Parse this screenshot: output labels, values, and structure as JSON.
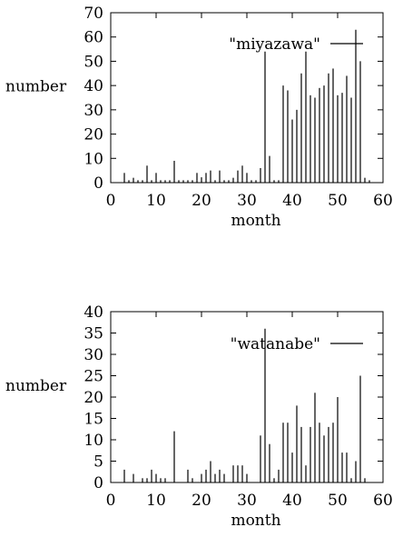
{
  "chart_data": [
    {
      "type": "bar",
      "xlabel": "month",
      "ylabel": "number",
      "xlim": [
        0,
        60
      ],
      "ylim": [
        0,
        70
      ],
      "xticks": [
        "0",
        "10",
        "20",
        "30",
        "40",
        "50",
        "60"
      ],
      "yticks": [
        "0",
        "10",
        "20",
        "30",
        "40",
        "50",
        "60",
        "70"
      ],
      "grid": false,
      "legend_placement": "top-right",
      "series": [
        {
          "name": "\"miyazawa\"",
          "x": [
            3,
            4,
            5,
            6,
            7,
            8,
            9,
            10,
            11,
            12,
            13,
            14,
            15,
            16,
            17,
            18,
            19,
            20,
            21,
            22,
            23,
            24,
            25,
            26,
            27,
            28,
            29,
            30,
            31,
            32,
            33,
            34,
            35,
            36,
            37,
            38,
            39,
            40,
            41,
            42,
            43,
            44,
            45,
            46,
            47,
            48,
            49,
            50,
            51,
            52,
            53,
            54,
            55,
            56,
            57
          ],
          "values": [
            4,
            1,
            2,
            1,
            1,
            7,
            1,
            4,
            1,
            1,
            1,
            9,
            1,
            1,
            1,
            1,
            4,
            2,
            4,
            5,
            1,
            5,
            1,
            1,
            2,
            5,
            7,
            4,
            1,
            1,
            6,
            54,
            11,
            1,
            1,
            40,
            38,
            26,
            30,
            45,
            54,
            36,
            35,
            39,
            40,
            45,
            47,
            36,
            37,
            44,
            35,
            63,
            50,
            2,
            1
          ]
        }
      ]
    },
    {
      "type": "bar",
      "xlabel": "month",
      "ylabel": "number",
      "xlim": [
        0,
        60
      ],
      "ylim": [
        0,
        40
      ],
      "xticks": [
        "0",
        "10",
        "20",
        "30",
        "40",
        "50",
        "60"
      ],
      "yticks": [
        "0",
        "5",
        "10",
        "15",
        "20",
        "25",
        "30",
        "35",
        "40"
      ],
      "grid": false,
      "legend_placement": "top-right",
      "series": [
        {
          "name": "\"watanabe\"",
          "x": [
            3,
            5,
            7,
            8,
            9,
            10,
            11,
            12,
            14,
            17,
            18,
            20,
            21,
            22,
            23,
            24,
            25,
            27,
            28,
            29,
            30,
            33,
            34,
            35,
            36,
            37,
            38,
            39,
            40,
            41,
            42,
            43,
            44,
            45,
            46,
            47,
            48,
            49,
            50,
            51,
            52,
            53,
            54,
            55,
            56
          ],
          "values": [
            3,
            2,
            1,
            1,
            3,
            2,
            1,
            1,
            12,
            3,
            1,
            2,
            3,
            5,
            2,
            3,
            2,
            4,
            4,
            4,
            2,
            11,
            36,
            9,
            1,
            3,
            14,
            14,
            7,
            18,
            13,
            4,
            13,
            21,
            14,
            11,
            13,
            14,
            20,
            7,
            7,
            1,
            5,
            25,
            1
          ]
        }
      ]
    }
  ]
}
